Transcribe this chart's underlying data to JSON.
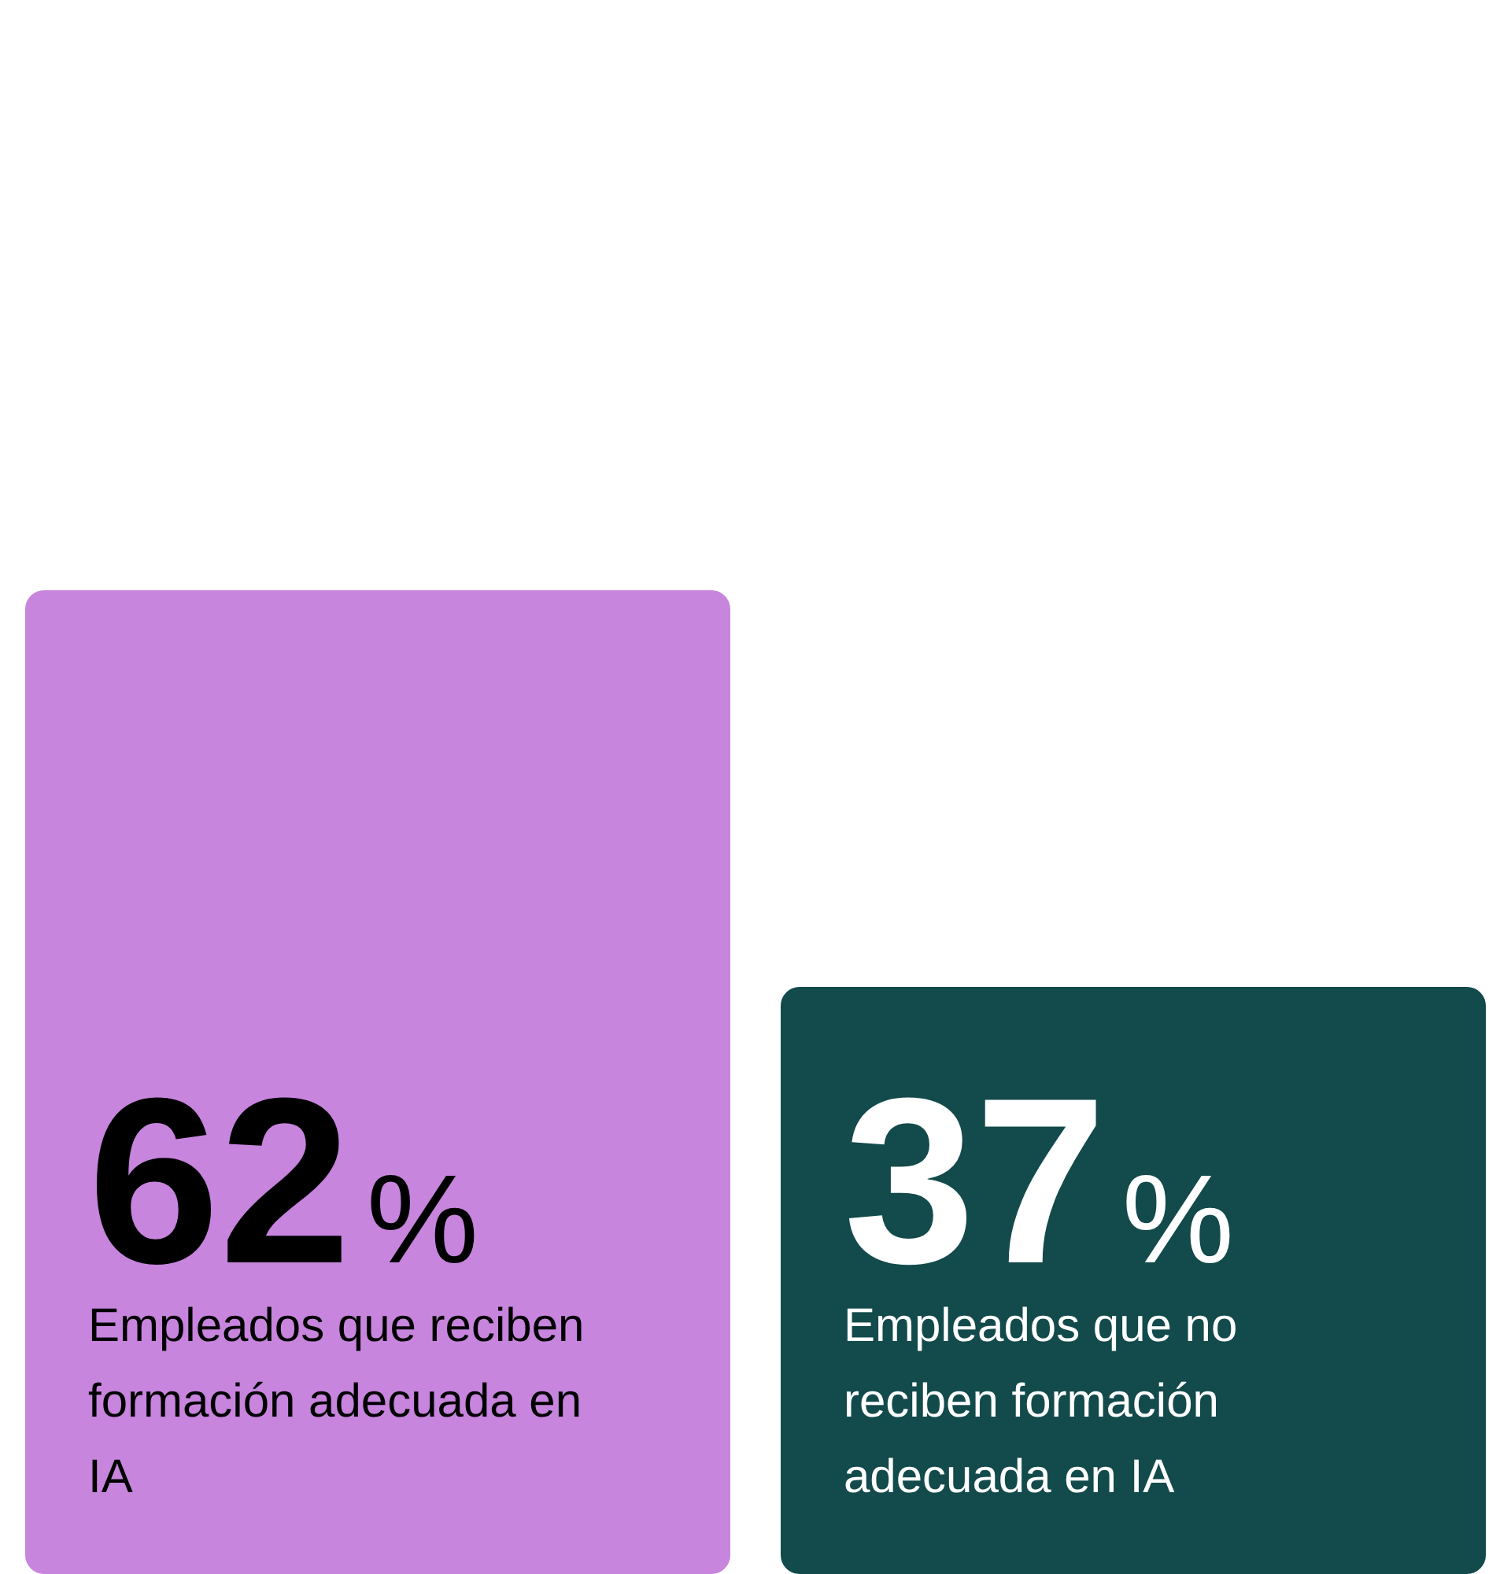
{
  "chart_data": {
    "type": "bar",
    "categories": [
      "Empleados que reciben formación adecuada en IA",
      "Empleados que no reciben formación adecuada en IA"
    ],
    "values": [
      62,
      37
    ],
    "colors": [
      "#c785de",
      "#134a4b"
    ],
    "value_labels": [
      "62%",
      "37%"
    ]
  }
}
